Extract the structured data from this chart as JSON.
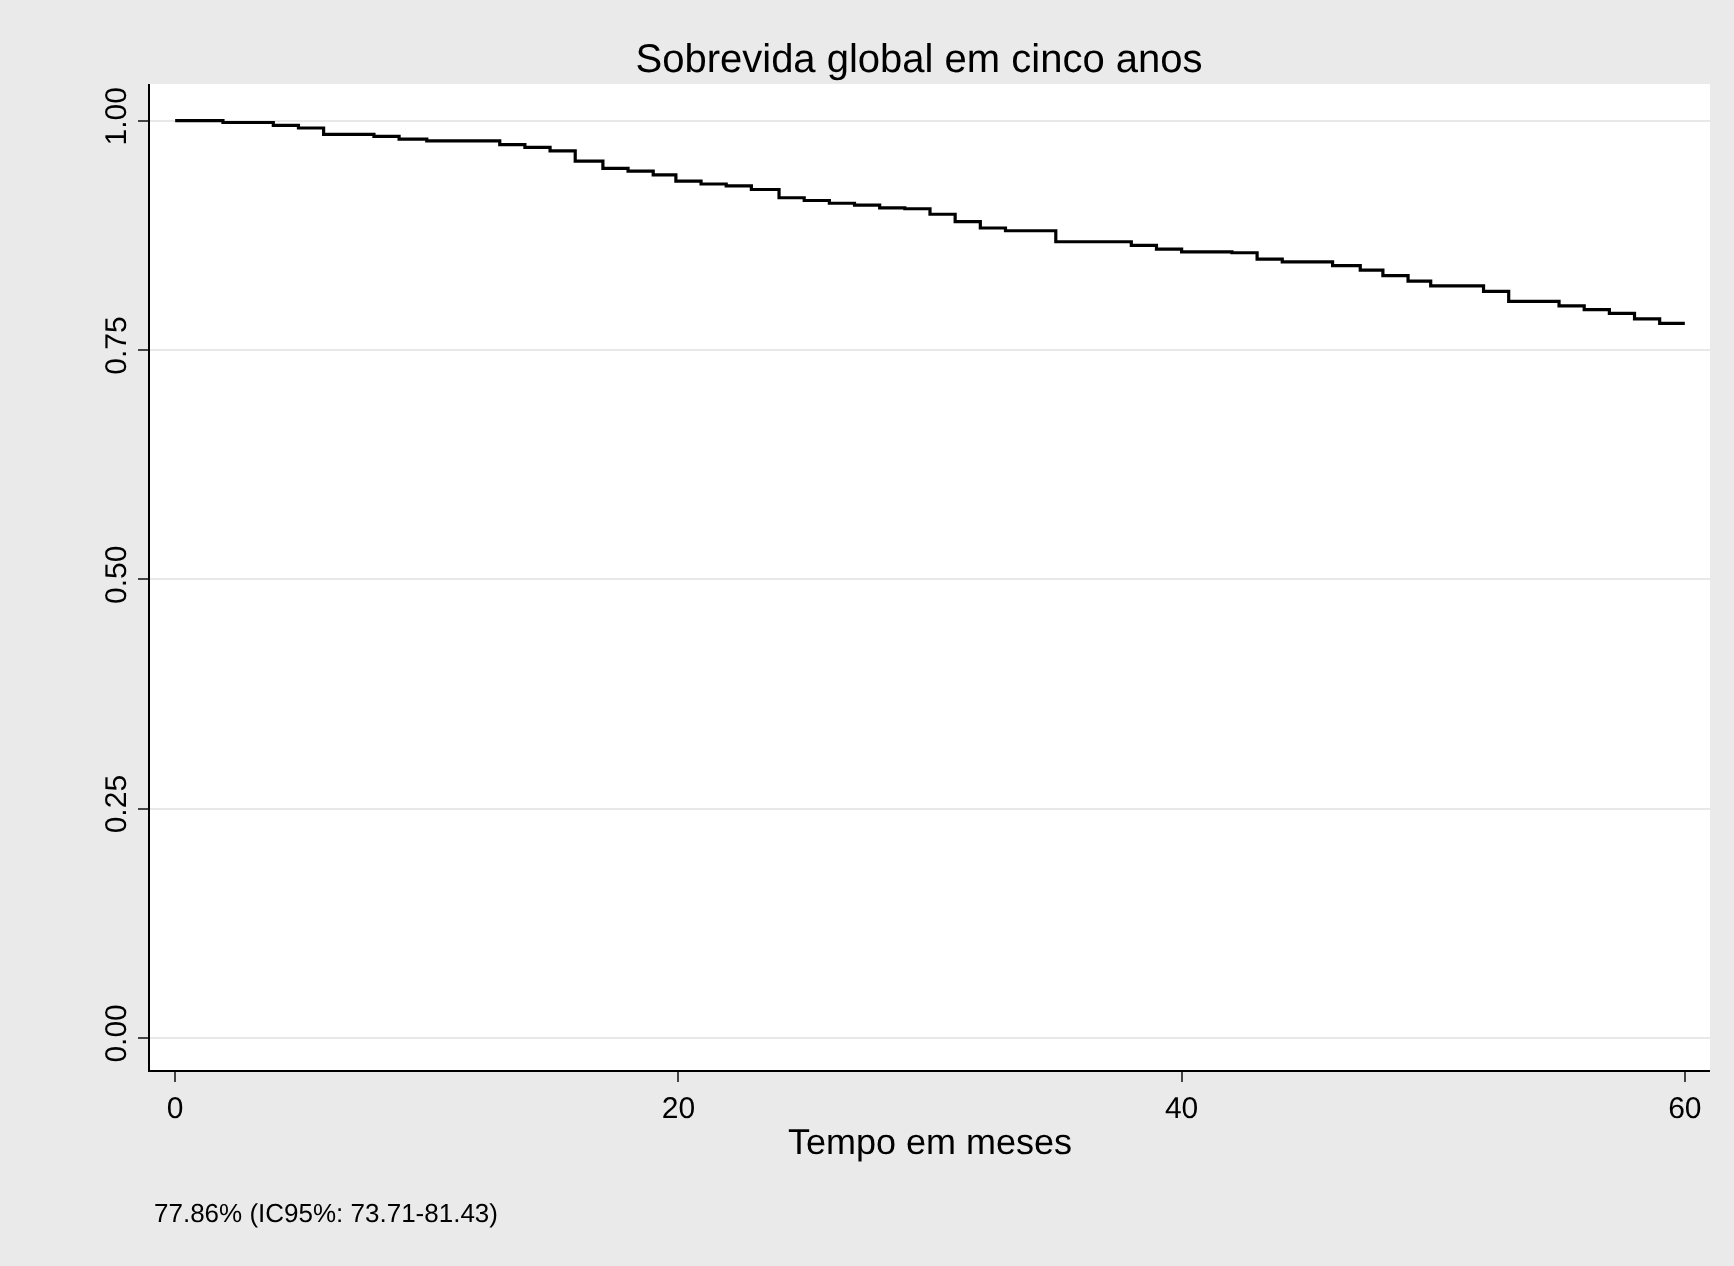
{
  "chart_data": {
    "type": "step",
    "title": "Sobrevida global em cinco anos",
    "xlabel": "Tempo em meses",
    "x": [
      0,
      1.9,
      3.9,
      4.9,
      5.9,
      7.9,
      8.9,
      10,
      12.9,
      13.9,
      14.9,
      15.9,
      17,
      18,
      19,
      19.9,
      20.9,
      21.9,
      22.9,
      24,
      25,
      26,
      27,
      28,
      29,
      30,
      31,
      32,
      33,
      35,
      38,
      39,
      40,
      42,
      43,
      44,
      46,
      47.1,
      48,
      49,
      49.9,
      52,
      53,
      55,
      56,
      57,
      58,
      59,
      60
    ],
    "values": [
      1.0,
      0.998,
      0.995,
      0.992,
      0.985,
      0.983,
      0.98,
      0.978,
      0.974,
      0.971,
      0.967,
      0.956,
      0.948,
      0.945,
      0.941,
      0.934,
      0.931,
      0.929,
      0.925,
      0.916,
      0.913,
      0.91,
      0.908,
      0.905,
      0.904,
      0.898,
      0.89,
      0.883,
      0.88,
      0.868,
      0.864,
      0.86,
      0.857,
      0.856,
      0.849,
      0.846,
      0.842,
      0.837,
      0.831,
      0.825,
      0.82,
      0.814,
      0.803,
      0.798,
      0.794,
      0.79,
      0.784,
      0.779,
      0.779
    ],
    "color": "#000000",
    "xlim": [
      -1,
      61
    ],
    "ylim": [
      -0.035,
      1.04
    ],
    "xticks": [
      0,
      20,
      40,
      60
    ],
    "yticks": [
      {
        "value": 0,
        "label": "0.00"
      },
      {
        "value": 0.25,
        "label": "0.25"
      },
      {
        "value": 0.5,
        "label": "0.50"
      },
      {
        "value": 0.75,
        "label": "0.75"
      },
      {
        "value": 1,
        "label": "1.00"
      }
    ],
    "grid": "y",
    "annotations": [
      "77.86% (IC95%: 73.71-81.43)"
    ]
  }
}
